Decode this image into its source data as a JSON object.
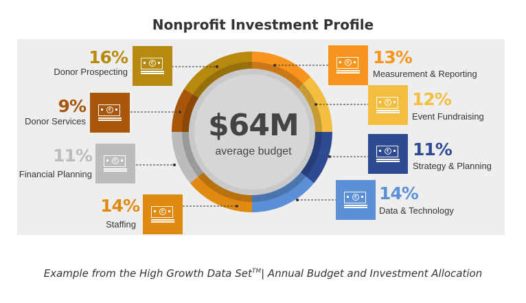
{
  "title": "Nonprofit Investment Profile",
  "center": {
    "amount": "$64M",
    "label": "average budget"
  },
  "caption": {
    "prefix": "Example from the High Growth Data Set",
    "trademark": "TM",
    "suffix": "| Annual Budget and Investment Allocation"
  },
  "icon_glyph": "€",
  "chart_data": {
    "type": "pie",
    "variant": "donut",
    "title": "Nonprofit Investment Profile",
    "center_text": "$64M average budget",
    "unit": "%",
    "slices": [
      {
        "label": "Measurement & Reporting",
        "value": 13,
        "pct_text": "13%",
        "color": "#f7941d"
      },
      {
        "label": "Event Fundraising",
        "value": 12,
        "pct_text": "12%",
        "color": "#f3bd3f"
      },
      {
        "label": "Strategy & Planning",
        "value": 11,
        "pct_text": "11%",
        "color": "#2e4a93"
      },
      {
        "label": "Data & Technology",
        "value": 14,
        "pct_text": "14%",
        "color": "#5b8fd6"
      },
      {
        "label": "Staffing",
        "value": 14,
        "pct_text": "14%",
        "color": "#e08a12"
      },
      {
        "label": "Financial Planning",
        "value": 11,
        "pct_text": "11%",
        "color": "#bcbcbc"
      },
      {
        "label": "Donor Services",
        "value": 9,
        "pct_text": "9%",
        "color": "#a8560a"
      },
      {
        "label": "Donor Prospecting",
        "value": 16,
        "pct_text": "16%",
        "color": "#b8890f"
      }
    ]
  }
}
